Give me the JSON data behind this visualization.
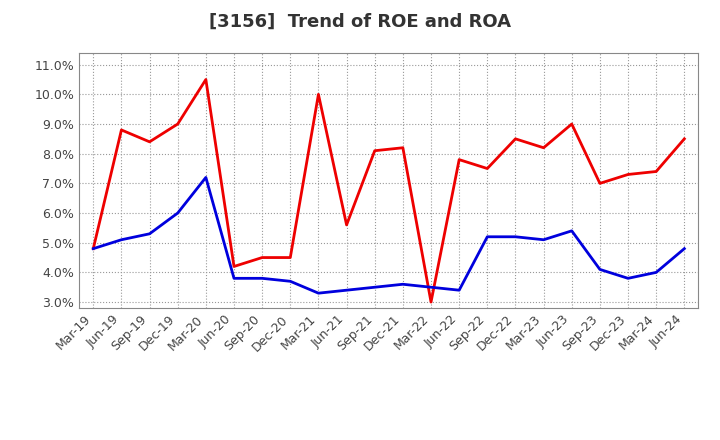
{
  "title": "[3156]  Trend of ROE and ROA",
  "x_labels": [
    "Mar-19",
    "Jun-19",
    "Sep-19",
    "Dec-19",
    "Mar-20",
    "Jun-20",
    "Sep-20",
    "Dec-20",
    "Mar-21",
    "Jun-21",
    "Sep-21",
    "Dec-21",
    "Mar-22",
    "Jun-22",
    "Sep-22",
    "Dec-22",
    "Mar-23",
    "Jun-23",
    "Sep-23",
    "Dec-23",
    "Mar-24",
    "Jun-24"
  ],
  "roe": [
    4.8,
    8.8,
    8.4,
    9.0,
    10.5,
    4.2,
    4.5,
    4.5,
    10.0,
    5.6,
    8.1,
    8.2,
    3.0,
    7.8,
    7.5,
    8.5,
    8.2,
    9.0,
    7.0,
    7.3,
    7.4,
    8.5
  ],
  "roa": [
    4.8,
    5.1,
    5.3,
    6.0,
    7.2,
    3.8,
    3.8,
    3.7,
    3.3,
    3.4,
    3.5,
    3.6,
    3.5,
    3.4,
    5.2,
    5.2,
    5.1,
    5.4,
    4.1,
    3.8,
    4.0,
    4.8
  ],
  "roe_color": "#EE0000",
  "roa_color": "#0000DD",
  "ylim": [
    2.8,
    11.4
  ],
  "yticks": [
    3.0,
    4.0,
    5.0,
    6.0,
    7.0,
    8.0,
    9.0,
    10.0,
    11.0
  ],
  "background_color": "#FFFFFF",
  "plot_bg_color": "#FFFFFF",
  "grid_color": "#999999",
  "title_fontsize": 13,
  "tick_fontsize": 9,
  "legend_fontsize": 11
}
